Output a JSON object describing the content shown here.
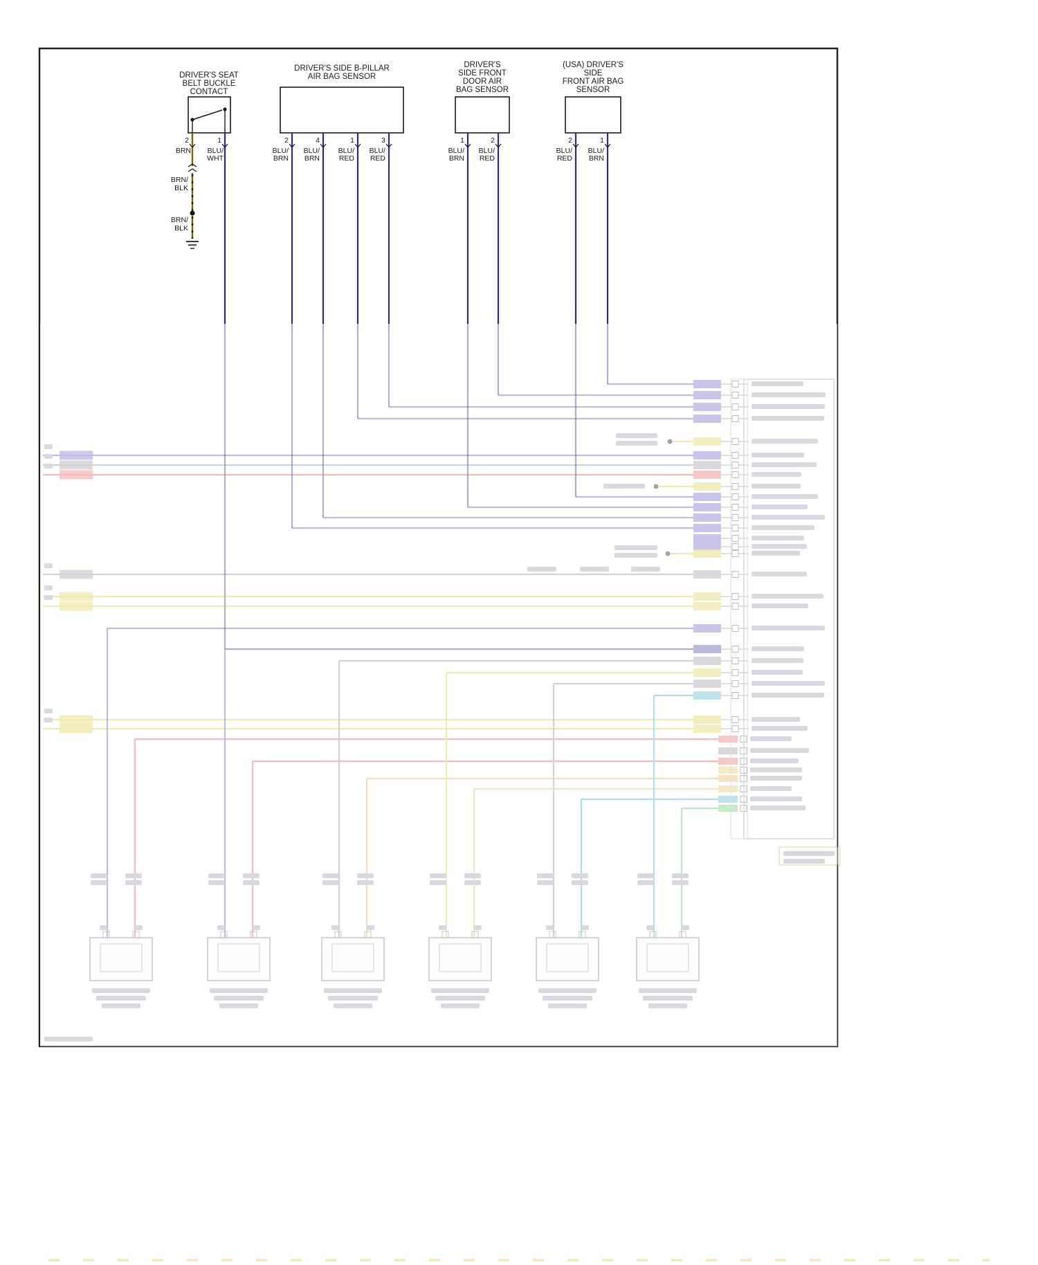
{
  "palette": {
    "navy": "#2b2b85",
    "purple": "#5a4fb8",
    "gray": "#8a8a96",
    "red": "#e05555",
    "yellow": "#d8cc3a",
    "yellow2": "#e0c050",
    "orange": "#e8a855",
    "teal": "#3aa8c0",
    "green": "#55c060",
    "olive": "#7d6608",
    "bar": "#9a9aae"
  },
  "components": {
    "buckle": {
      "title": [
        "DRIVER'S SEAT",
        "BELT BUCKLE",
        "CONTACT"
      ],
      "pins": [
        "2",
        "1"
      ],
      "wire_labels": [
        [
          "BRN"
        ],
        [
          "BLU/",
          "WHT"
        ]
      ]
    },
    "bpillar": {
      "title": [
        "DRIVER'S SIDE B-PILLAR",
        "AIR BAG SENSOR"
      ],
      "pins": [
        "2",
        "4",
        "1",
        "3"
      ],
      "wire_labels": [
        [
          "BLU/",
          "BRN"
        ],
        [
          "BLU/",
          "BRN"
        ],
        [
          "BLU/",
          "RED"
        ],
        [
          "BLU/",
          "RED"
        ]
      ]
    },
    "door": {
      "title": [
        "DRIVER'S",
        "SIDE FRONT",
        "DOOR AIR",
        "BAG SENSOR"
      ],
      "pins": [
        "1",
        "2"
      ],
      "wire_labels": [
        [
          "BLU/",
          "BRN"
        ],
        [
          "BLU/",
          "RED"
        ]
      ]
    },
    "usa_front": {
      "title": [
        "(USA) DRIVER'S",
        "SIDE",
        "FRONT AIR BAG",
        "SENSOR"
      ],
      "pins": [
        "2",
        "1"
      ],
      "wire_labels": [
        [
          "BLU/",
          "RED"
        ],
        [
          "BLU/",
          "BRN"
        ]
      ]
    }
  },
  "ground_path": {
    "labels": [
      [
        "BRN/",
        "BLK"
      ],
      [
        "BRN/",
        "BLK"
      ]
    ]
  }
}
